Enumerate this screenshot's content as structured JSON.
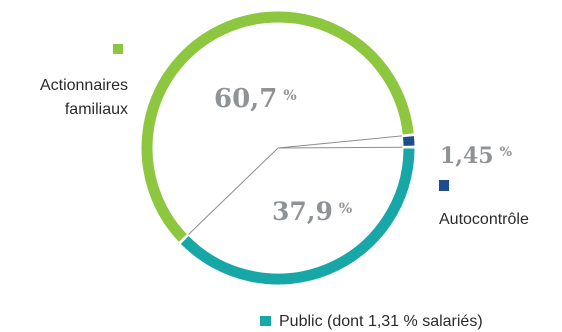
{
  "chart_data": {
    "type": "pie",
    "style": "ring",
    "slices": [
      {
        "name": "Actionnaires familiaux",
        "value": 60.7,
        "value_label": "60,7",
        "color": "#8dc63f"
      },
      {
        "name": "Autocontrôle",
        "value": 1.45,
        "value_label": "1,45",
        "color": "#1f4e8c"
      },
      {
        "name": "Public (dont 1,31 % salariés)",
        "value": 37.9,
        "value_label": "37,9",
        "color": "#17a7a7"
      }
    ],
    "percent_sign": "%"
  }
}
